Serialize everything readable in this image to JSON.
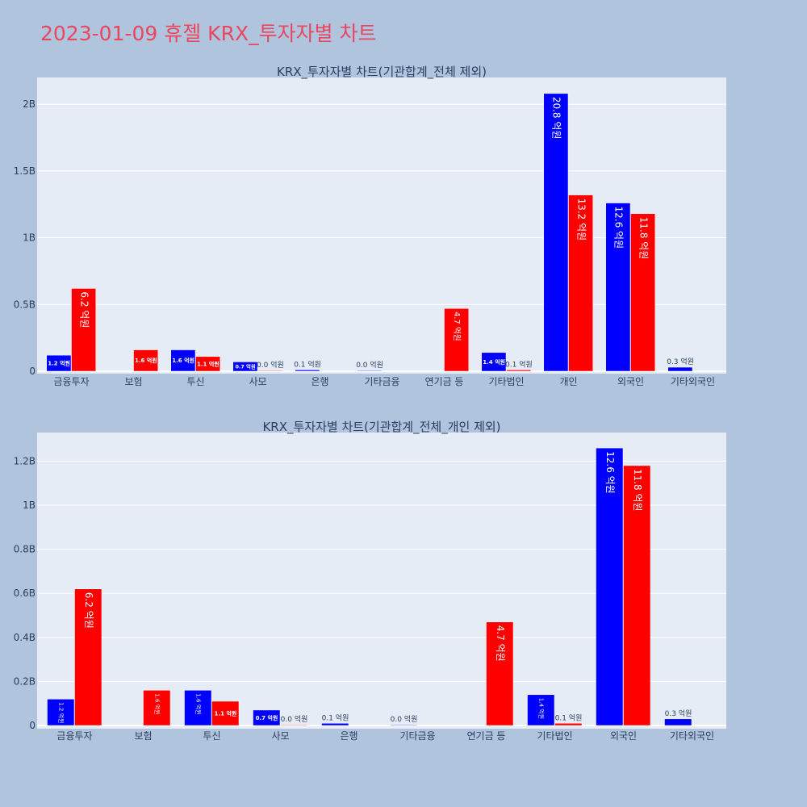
{
  "title": "2023-01-09 휴젤 KRX_투자자별 차트",
  "colors": {
    "buy": "#0000ff",
    "sell": "#ff0000",
    "background": "#b0c4de",
    "plot_bg": "#e5ecf6",
    "title": "#e8475f"
  },
  "chart_data": [
    {
      "type": "bar",
      "title": "KRX_투자자별 차트(기관합계_전체 제외)",
      "categories": [
        "금융투자",
        "보험",
        "투신",
        "사모",
        "은행",
        "기타금융",
        "연기금 등",
        "기타법인",
        "개인",
        "외국인",
        "기타외국인"
      ],
      "series": [
        {
          "color": "#0000ff",
          "values": [
            120000000,
            null,
            160000000,
            70000000,
            10000000,
            0,
            null,
            140000000,
            2080000000,
            1260000000,
            30000000
          ],
          "labels": [
            "1.2 억원",
            "",
            "1.6 억원",
            "0.7 억원",
            "0.1 억원",
            "0.0 억원",
            "",
            "1.4 억원",
            "20.8 억원",
            "12.6 억원",
            "0.3 억원"
          ]
        },
        {
          "color": "#ff0000",
          "values": [
            620000000,
            160000000,
            110000000,
            0,
            null,
            null,
            470000000,
            10000000,
            1320000000,
            1180000000,
            null
          ],
          "labels": [
            "6.2 억원",
            "1.6 억원",
            "1.1 억원",
            "0.0 억원",
            "",
            "",
            "4.7 억원",
            "0.1 억원",
            "13.2 억원",
            "11.8 억원",
            ""
          ]
        }
      ],
      "ylim": [
        0,
        2200000000
      ],
      "yticks": [
        0,
        500000000,
        1000000000,
        1500000000,
        2000000000
      ],
      "ytick_labels": [
        "0",
        "0.5B",
        "1B",
        "1.5B",
        "2B"
      ],
      "grid": true
    },
    {
      "type": "bar",
      "title": "KRX_투자자별 차트(기관합계_전체_개인 제외)",
      "categories": [
        "금융투자",
        "보험",
        "투신",
        "사모",
        "은행",
        "기타금융",
        "연기금 등",
        "기타법인",
        "외국인",
        "기타외국인"
      ],
      "series": [
        {
          "color": "#0000ff",
          "values": [
            120000000,
            null,
            160000000,
            70000000,
            10000000,
            0,
            null,
            140000000,
            1260000000,
            30000000
          ],
          "labels": [
            "1.2 억원",
            "",
            "1.6 억원",
            "0.7 억원",
            "0.1 억원",
            "0.0 억원",
            "",
            "1.4 억원",
            "12.6 억원",
            "0.3 억원"
          ]
        },
        {
          "color": "#ff0000",
          "values": [
            620000000,
            160000000,
            110000000,
            0,
            null,
            null,
            470000000,
            10000000,
            1180000000,
            null
          ],
          "labels": [
            "6.2 억원",
            "1.6 억원",
            "1.1 억원",
            "0.0 억원",
            "",
            "",
            "4.7 억원",
            "0.1 억원",
            "11.8 억원",
            ""
          ]
        }
      ],
      "ylim": [
        0,
        1330000000
      ],
      "yticks": [
        0,
        200000000,
        400000000,
        600000000,
        800000000,
        1000000000,
        1200000000
      ],
      "ytick_labels": [
        "0",
        "0.2B",
        "0.4B",
        "0.6B",
        "0.8B",
        "1B",
        "1.2B"
      ],
      "grid": true
    }
  ]
}
